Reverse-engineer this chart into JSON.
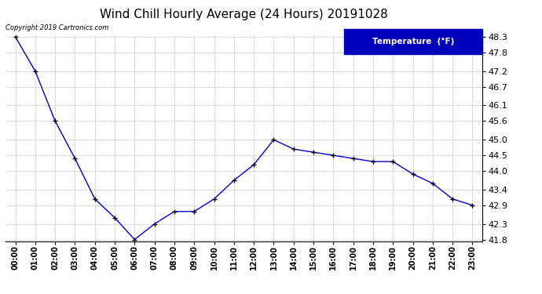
{
  "title": "Wind Chill Hourly Average (24 Hours) 20191028",
  "copyright_text": "Copyright 2019 Cartronics.com",
  "legend_label": "Temperature  (°F)",
  "hours": [
    "00:00",
    "01:00",
    "02:00",
    "03:00",
    "04:00",
    "05:00",
    "06:00",
    "07:00",
    "08:00",
    "09:00",
    "10:00",
    "11:00",
    "12:00",
    "13:00",
    "14:00",
    "15:00",
    "16:00",
    "17:00",
    "18:00",
    "19:00",
    "20:00",
    "21:00",
    "22:00",
    "23:00"
  ],
  "values": [
    48.3,
    47.2,
    45.6,
    44.4,
    43.1,
    42.5,
    41.8,
    42.3,
    42.7,
    42.7,
    43.1,
    43.7,
    44.2,
    45.0,
    44.7,
    44.6,
    44.5,
    44.4,
    44.3,
    44.3,
    43.9,
    43.6,
    43.1,
    42.9
  ],
  "ylim_min": 41.8,
  "ylim_max": 48.3,
  "yticks": [
    41.8,
    42.3,
    42.9,
    43.4,
    44.0,
    44.5,
    45.0,
    45.6,
    46.1,
    46.7,
    47.2,
    47.8,
    48.3
  ],
  "line_color": "#0000cc",
  "marker": "+",
  "marker_color": "#000000",
  "bg_color": "#ffffff",
  "grid_color": "#bbbbbb",
  "title_fontsize": 11,
  "legend_bg": "#0000bb",
  "legend_text_color": "#ffffff"
}
